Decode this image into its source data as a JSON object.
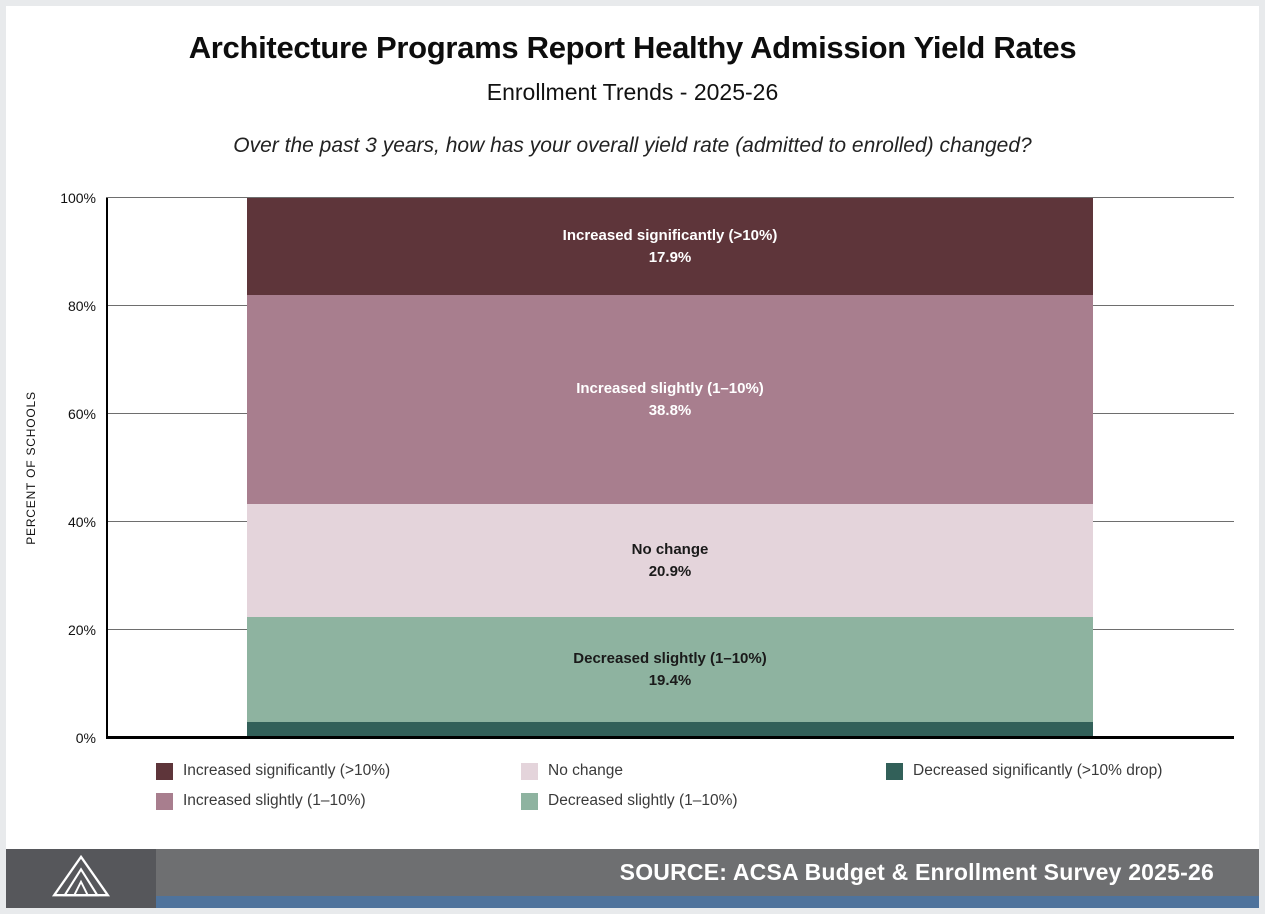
{
  "header": {
    "title": "Architecture Programs Report Healthy Admission Yield Rates",
    "subtitle": "Enrollment Trends - 2025-26",
    "question": "Over the past 3 years, how has your overall yield rate (admitted to enrolled) changed?"
  },
  "chart_data": {
    "type": "bar",
    "variant": "stacked-100-single-column",
    "title": "Architecture Programs Report Healthy Admission Yield Rates",
    "xlabel": "",
    "ylabel": "PERCENT OF SCHOOLS",
    "ylim": [
      0,
      100
    ],
    "yticks": [
      0,
      20,
      40,
      60,
      80,
      100
    ],
    "ytick_labels": [
      "0%",
      "20%",
      "40%",
      "60%",
      "80%",
      "100%"
    ],
    "grid": "horizontal",
    "legend_position": "bottom",
    "segments": [
      {
        "label": "Increased significantly (>10%)",
        "value": 17.9,
        "display": "17.9%",
        "color": "#5e353a",
        "text_color": "#ffffff",
        "show_label": true
      },
      {
        "label": "Increased slightly (1–10%)",
        "value": 38.8,
        "display": "38.8%",
        "color": "#a87e8e",
        "text_color": "#ffffff",
        "show_label": true
      },
      {
        "label": "No change",
        "value": 20.9,
        "display": "20.9%",
        "color": "#e4d4db",
        "text_color": "#1a1a1a",
        "show_label": true
      },
      {
        "label": "Decreased slightly (1–10%)",
        "value": 19.4,
        "display": "19.4%",
        "color": "#8eb3a0",
        "text_color": "#1a1a1a",
        "show_label": true
      },
      {
        "label": "Decreased significantly (>10% drop)",
        "value": 3.0,
        "display": "",
        "color": "#326059",
        "text_color": "#ffffff",
        "show_label": false
      }
    ]
  },
  "legend": {
    "order": [
      0,
      2,
      4,
      1,
      3
    ]
  },
  "footer": {
    "source": "SOURCE: ACSA Budget & Enrollment Survey 2025-26",
    "logo": "acsa-triangles-logo"
  }
}
